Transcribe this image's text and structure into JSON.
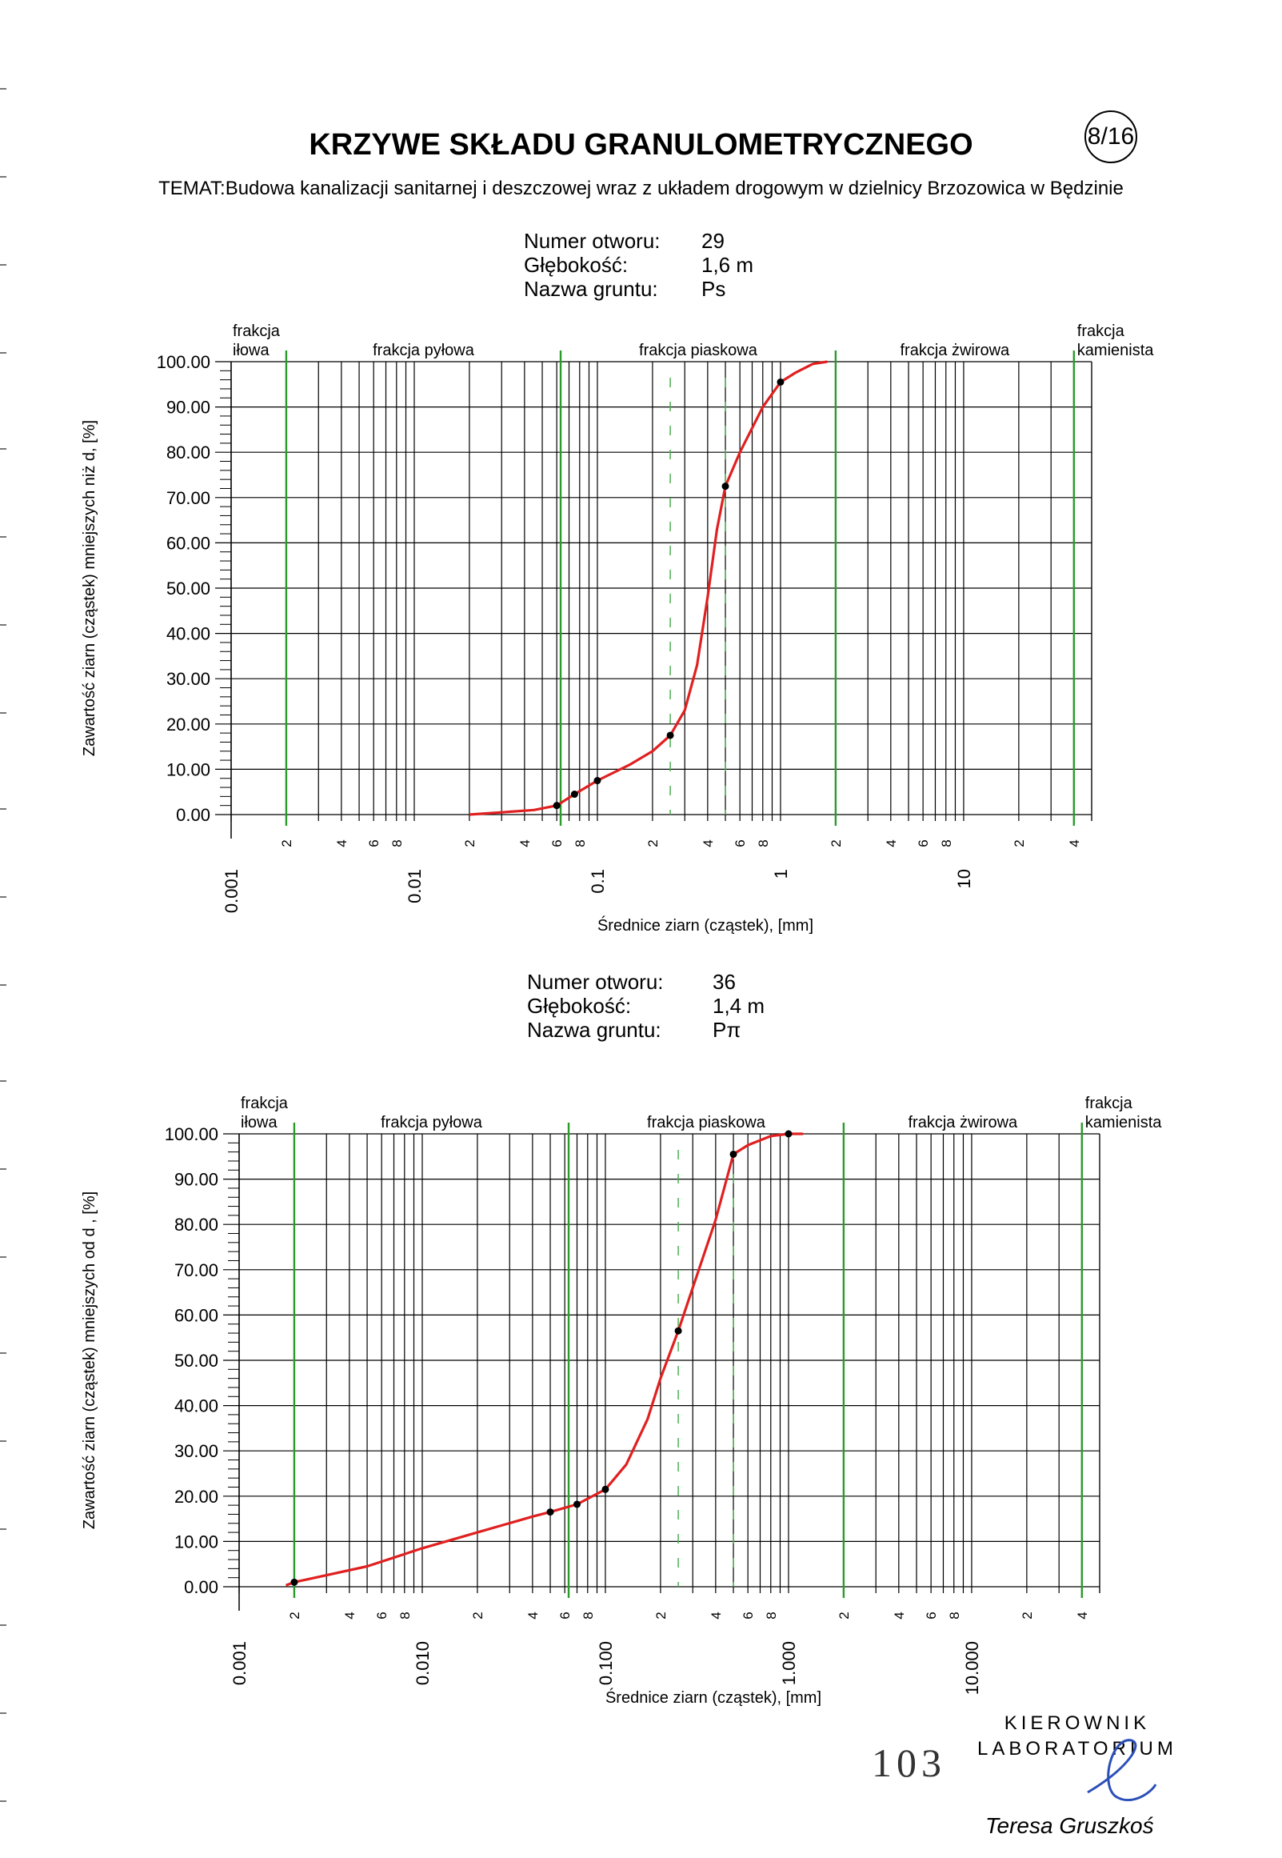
{
  "title": "KRZYWE SKŁADU GRANULOMETRYCZNEGO",
  "page_badge": "8/16",
  "subtitle": "TEMAT:Budowa kanalizacji sanitarnej i deszczowej wraz z układem drogowym w dzielnicy Brzozowica w Będzinie",
  "page_number": "103",
  "signature": {
    "line1": "KIEROWNIK",
    "line2": "LABORATORIUM",
    "name": "Teresa Gruszkoś"
  },
  "colors": {
    "curve": "#e02020",
    "fraction_line": "#2a9a2a",
    "dashed_line": "#4caf50",
    "grid": "#000000"
  },
  "chart_data": [
    {
      "type": "line",
      "x_scale": "log",
      "xlim": [
        0.001,
        50
      ],
      "ylim": [
        0,
        100
      ],
      "info": {
        "borehole_label": "Numer otworu:",
        "borehole": "29",
        "depth_label": "Głębokość:",
        "depth": "1,6 m",
        "soil_label": "Nazwa gruntu:",
        "soil": "Ps"
      },
      "ylabel": "Zawartość ziarn (cząstek) mniejszych niż d, [%]",
      "xlabel": "Średnice ziarn (cząstek), [mm]",
      "y_ticks": [
        "100.00",
        "90.00",
        "80.00",
        "70.00",
        "60.00",
        "50.00",
        "40.00",
        "30.00",
        "20.00",
        "10.00",
        "0.00"
      ],
      "x_major_ticks": [
        {
          "x": 0.001,
          "label": "0.001"
        },
        {
          "x": 0.01,
          "label": "0.01"
        },
        {
          "x": 0.1,
          "label": "0.1"
        },
        {
          "x": 1,
          "label": "1"
        },
        {
          "x": 10,
          "label": "10"
        }
      ],
      "x_minor_labels": [
        {
          "x": 0.002,
          "label": "2"
        },
        {
          "x": 0.004,
          "label": "4"
        },
        {
          "x": 0.006,
          "label": "6"
        },
        {
          "x": 0.008,
          "label": "8"
        },
        {
          "x": 0.02,
          "label": "2"
        },
        {
          "x": 0.04,
          "label": "4"
        },
        {
          "x": 0.06,
          "label": "6"
        },
        {
          "x": 0.08,
          "label": "8"
        },
        {
          "x": 0.2,
          "label": "2"
        },
        {
          "x": 0.4,
          "label": "4"
        },
        {
          "x": 0.6,
          "label": "6"
        },
        {
          "x": 0.8,
          "label": "8"
        },
        {
          "x": 2,
          "label": "2"
        },
        {
          "x": 4,
          "label": "4"
        },
        {
          "x": 6,
          "label": "6"
        },
        {
          "x": 8,
          "label": "8"
        },
        {
          "x": 20,
          "label": "2"
        },
        {
          "x": 40,
          "label": "4"
        }
      ],
      "fractions": [
        {
          "label": "frakcja\niłowa",
          "x_from": 0.001,
          "x_to": 0.002
        },
        {
          "label": "frakcja pyłowa",
          "x_from": 0.002,
          "x_to": 0.063
        },
        {
          "label": "frakcja piaskowa",
          "x_from": 0.063,
          "x_to": 2
        },
        {
          "label": "frakcja żwirowa",
          "x_from": 2,
          "x_to": 40
        },
        {
          "label": "frakcja\nkamienista",
          "x_from": 40,
          "x_to": 50
        }
      ],
      "fraction_boundaries": [
        0.002,
        0.063,
        2,
        40
      ],
      "dashed_lines": [
        0.25,
        0.5
      ],
      "curve": [
        [
          0.02,
          0
        ],
        [
          0.03,
          0.5
        ],
        [
          0.045,
          1
        ],
        [
          0.06,
          2
        ],
        [
          0.075,
          4.5
        ],
        [
          0.1,
          7.5
        ],
        [
          0.15,
          11
        ],
        [
          0.2,
          14
        ],
        [
          0.25,
          17.5
        ],
        [
          0.3,
          23
        ],
        [
          0.35,
          33
        ],
        [
          0.4,
          48
        ],
        [
          0.45,
          63
        ],
        [
          0.5,
          72.5
        ],
        [
          0.6,
          80
        ],
        [
          0.8,
          90
        ],
        [
          1.0,
          95.5
        ],
        [
          1.2,
          97.5
        ],
        [
          1.5,
          99.5
        ],
        [
          1.8,
          100
        ]
      ],
      "points": [
        [
          0.06,
          2
        ],
        [
          0.075,
          4.5
        ],
        [
          0.1,
          7.5
        ],
        [
          0.25,
          17.5
        ],
        [
          0.5,
          72.5
        ],
        [
          1.0,
          95.5
        ]
      ],
      "dashed_segments": [
        [
          0.02,
          0.025
        ],
        [
          0.03,
          0.035
        ],
        [
          1.2,
          1.4
        ],
        [
          1.5,
          1.7
        ]
      ]
    },
    {
      "type": "line",
      "x_scale": "log",
      "xlim": [
        0.001,
        50
      ],
      "ylim": [
        0,
        100
      ],
      "info": {
        "borehole_label": "Numer otworu:",
        "borehole": "36",
        "depth_label": "Głębokość:",
        "depth": "1,4 m",
        "soil_label": "Nazwa gruntu:",
        "soil": "Pπ"
      },
      "ylabel": "Zawartość ziarn (cząstek) mniejszych od d , [%]",
      "xlabel": "Średnice ziarn (cząstek), [mm]",
      "y_ticks": [
        "100.00",
        "90.00",
        "80.00",
        "70.00",
        "60.00",
        "50.00",
        "40.00",
        "30.00",
        "20.00",
        "10.00",
        "0.00"
      ],
      "x_major_ticks": [
        {
          "x": 0.001,
          "label": "0.001"
        },
        {
          "x": 0.01,
          "label": "0.010"
        },
        {
          "x": 0.1,
          "label": "0.100"
        },
        {
          "x": 1,
          "label": "1.000"
        },
        {
          "x": 10,
          "label": "10.000"
        }
      ],
      "x_minor_labels": [
        {
          "x": 0.002,
          "label": "2"
        },
        {
          "x": 0.004,
          "label": "4"
        },
        {
          "x": 0.006,
          "label": "6"
        },
        {
          "x": 0.008,
          "label": "8"
        },
        {
          "x": 0.02,
          "label": "2"
        },
        {
          "x": 0.04,
          "label": "4"
        },
        {
          "x": 0.06,
          "label": "6"
        },
        {
          "x": 0.08,
          "label": "8"
        },
        {
          "x": 0.2,
          "label": "2"
        },
        {
          "x": 0.4,
          "label": "4"
        },
        {
          "x": 0.6,
          "label": "6"
        },
        {
          "x": 0.8,
          "label": "8"
        },
        {
          "x": 2,
          "label": "2"
        },
        {
          "x": 4,
          "label": "4"
        },
        {
          "x": 6,
          "label": "6"
        },
        {
          "x": 8,
          "label": "8"
        },
        {
          "x": 20,
          "label": "2"
        },
        {
          "x": 40,
          "label": "4"
        }
      ],
      "fractions": [
        {
          "label": "frakcja\niłowa",
          "x_from": 0.001,
          "x_to": 0.002
        },
        {
          "label": "frakcja pyłowa",
          "x_from": 0.002,
          "x_to": 0.063
        },
        {
          "label": "frakcja piaskowa",
          "x_from": 0.063,
          "x_to": 2
        },
        {
          "label": "frakcja żwirowa",
          "x_from": 2,
          "x_to": 40
        },
        {
          "label": "frakcja\nkamienista",
          "x_from": 40,
          "x_to": 50
        }
      ],
      "fraction_boundaries": [
        0.002,
        0.063,
        2,
        40
      ],
      "dashed_lines": [
        0.25,
        0.5
      ],
      "curve": [
        [
          0.0018,
          0.3
        ],
        [
          0.002,
          1
        ],
        [
          0.005,
          4.5
        ],
        [
          0.01,
          8.5
        ],
        [
          0.02,
          12
        ],
        [
          0.04,
          15.5
        ],
        [
          0.05,
          16.5
        ],
        [
          0.07,
          18.2
        ],
        [
          0.1,
          21.5
        ],
        [
          0.13,
          27
        ],
        [
          0.17,
          37
        ],
        [
          0.2,
          46
        ],
        [
          0.25,
          56.5
        ],
        [
          0.3,
          66
        ],
        [
          0.4,
          81
        ],
        [
          0.5,
          95.5
        ],
        [
          0.6,
          97.5
        ],
        [
          0.8,
          99.5
        ],
        [
          1.0,
          100
        ],
        [
          1.2,
          100
        ]
      ],
      "points": [
        [
          0.002,
          1
        ],
        [
          0.05,
          16.5
        ],
        [
          0.07,
          18.2
        ],
        [
          0.1,
          21.5
        ],
        [
          0.25,
          56.5
        ],
        [
          0.5,
          95.5
        ],
        [
          1.0,
          100
        ]
      ],
      "dashed_segments": []
    }
  ]
}
